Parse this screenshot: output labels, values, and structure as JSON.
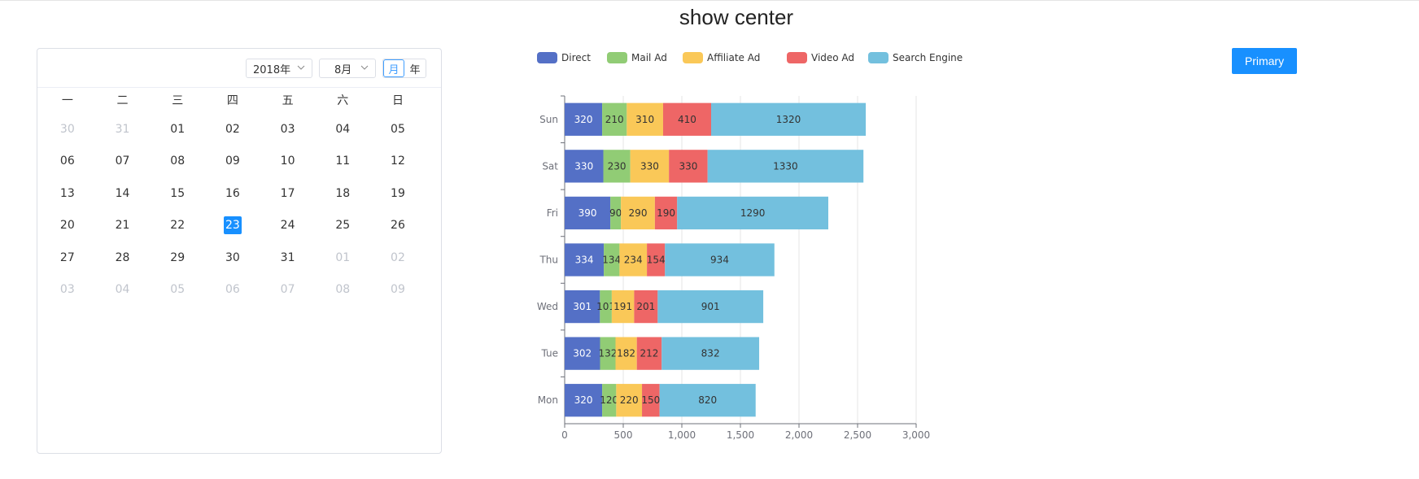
{
  "page": {
    "title": "show center"
  },
  "calendar": {
    "year_label": "2018年",
    "month_label": "8月",
    "mode_month": "月",
    "mode_year": "年",
    "weekdays": [
      "一",
      "二",
      "三",
      "四",
      "五",
      "六",
      "日"
    ],
    "weeks": [
      [
        {
          "d": "30",
          "o": true
        },
        {
          "d": "31",
          "o": true
        },
        {
          "d": "01"
        },
        {
          "d": "02"
        },
        {
          "d": "03"
        },
        {
          "d": "04"
        },
        {
          "d": "05"
        }
      ],
      [
        {
          "d": "06"
        },
        {
          "d": "07"
        },
        {
          "d": "08"
        },
        {
          "d": "09"
        },
        {
          "d": "10"
        },
        {
          "d": "11"
        },
        {
          "d": "12"
        }
      ],
      [
        {
          "d": "13"
        },
        {
          "d": "14"
        },
        {
          "d": "15"
        },
        {
          "d": "16"
        },
        {
          "d": "17"
        },
        {
          "d": "18"
        },
        {
          "d": "19"
        }
      ],
      [
        {
          "d": "20"
        },
        {
          "d": "21"
        },
        {
          "d": "22"
        },
        {
          "d": "23",
          "s": true
        },
        {
          "d": "24"
        },
        {
          "d": "25"
        },
        {
          "d": "26"
        }
      ],
      [
        {
          "d": "27"
        },
        {
          "d": "28"
        },
        {
          "d": "29"
        },
        {
          "d": "30"
        },
        {
          "d": "31"
        },
        {
          "d": "01",
          "o": true
        },
        {
          "d": "02",
          "o": true
        }
      ],
      [
        {
          "d": "03",
          "o": true
        },
        {
          "d": "04",
          "o": true
        },
        {
          "d": "05",
          "o": true
        },
        {
          "d": "06",
          "o": true
        },
        {
          "d": "07",
          "o": true
        },
        {
          "d": "08",
          "o": true
        },
        {
          "d": "09",
          "o": true
        }
      ]
    ]
  },
  "button": {
    "primary_label": "Primary"
  },
  "chart_data": {
    "type": "bar",
    "orientation": "horizontal",
    "stacked": true,
    "categories": [
      "Mon",
      "Tue",
      "Wed",
      "Thu",
      "Fri",
      "Sat",
      "Sun"
    ],
    "series": [
      {
        "name": "Direct",
        "color": "#5470c6",
        "values": [
          320,
          302,
          301,
          334,
          390,
          330,
          320
        ]
      },
      {
        "name": "Mail Ad",
        "color": "#91cc75",
        "values": [
          120,
          132,
          101,
          134,
          90,
          230,
          210
        ]
      },
      {
        "name": "Affiliate Ad",
        "color": "#fac858",
        "values": [
          220,
          182,
          191,
          234,
          290,
          330,
          310
        ]
      },
      {
        "name": "Video Ad",
        "color": "#ee6666",
        "values": [
          150,
          212,
          201,
          154,
          190,
          330,
          410
        ]
      },
      {
        "name": "Search Engine",
        "color": "#73c0de",
        "values": [
          820,
          832,
          901,
          934,
          1290,
          1330,
          1320
        ]
      }
    ],
    "xlim": [
      0,
      3000
    ],
    "x_ticks": [
      "0",
      "500",
      "1,000",
      "1,500",
      "2,000",
      "2,500",
      "3,000"
    ],
    "legend_position": "top",
    "grid": "vertical"
  }
}
